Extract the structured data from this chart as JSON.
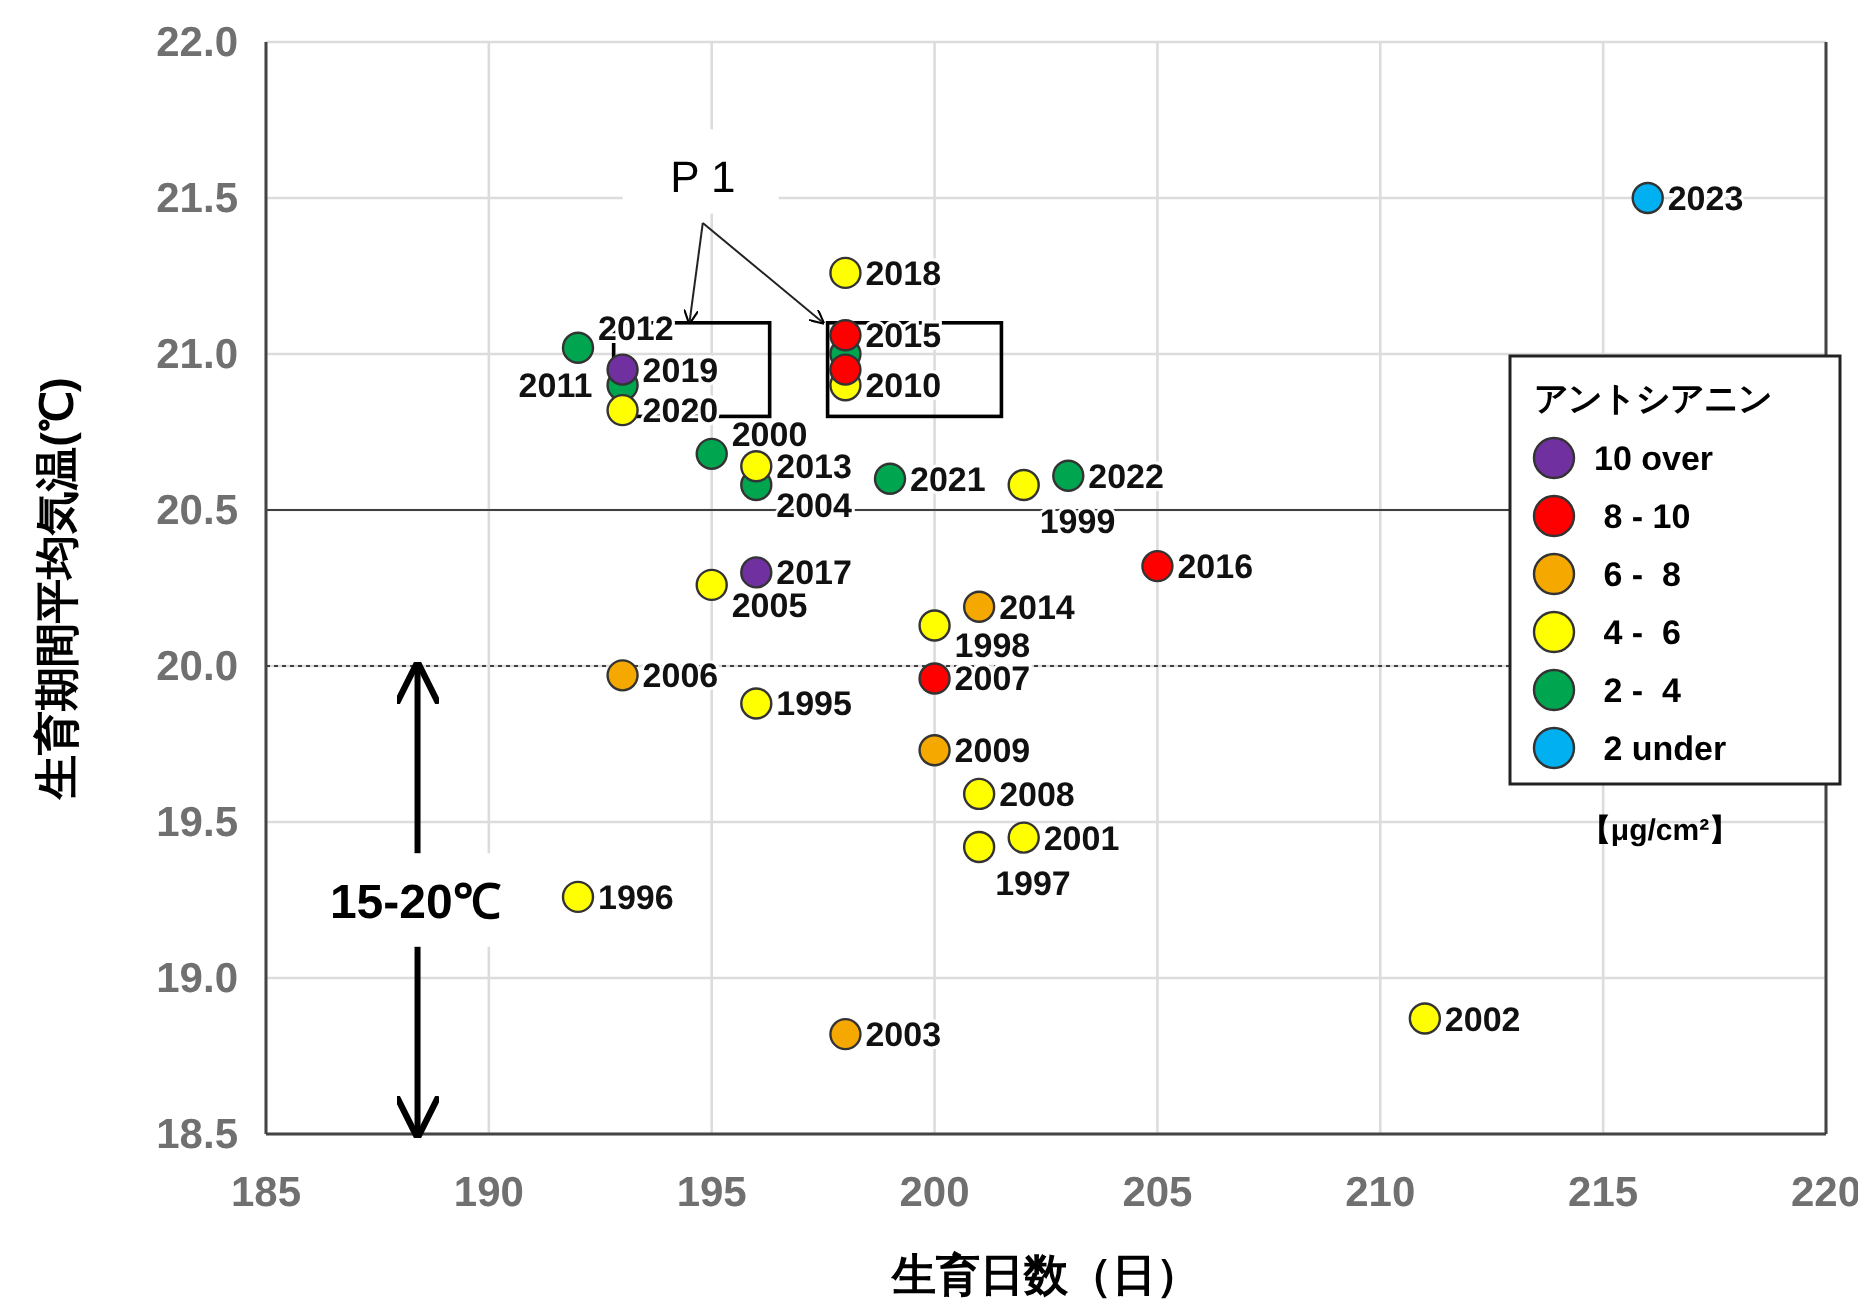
{
  "chart_data": {
    "type": "scatter",
    "xlabel": "生育日数（日）",
    "ylabel": "生育期間平均気温(℃)",
    "legend_title": "アントシアニン",
    "legend": "right",
    "grid": true,
    "marker": "circle",
    "xlim": [
      185,
      220
    ],
    "xticks": [
      185,
      190,
      195,
      200,
      205,
      210,
      215,
      220
    ],
    "ylim": [
      18.5,
      22.0
    ],
    "yticks": [
      {
        "value": 18.5,
        "label": "18.5"
      },
      {
        "value": 19.0,
        "label": "19.0"
      },
      {
        "value": 19.5,
        "label": "19.5"
      },
      {
        "value": 20.0,
        "label": "20.0"
      },
      {
        "value": 20.5,
        "label": "20.5"
      },
      {
        "value": 21.0,
        "label": "21.0"
      },
      {
        "value": 21.5,
        "label": "21.5"
      },
      {
        "value": 22.0,
        "label": "22.0"
      }
    ],
    "ref_lines": [
      {
        "axis": "y",
        "value": 20.5,
        "line_style": "solid",
        "color": "#404040"
      },
      {
        "axis": "y",
        "value": 20.0,
        "line_style": "dotted",
        "color": "#404040"
      }
    ],
    "annotations": [
      "P 1",
      "15-20℃",
      "【μg/cm²】",
      {
        "text": "2019",
        "x": 193,
        "y": 20.95
      },
      {
        "text": "2017",
        "x": 196,
        "y": 20.3
      },
      {
        "text": "2015",
        "x": 198,
        "y": 21.06
      },
      {
        "text": "2007",
        "x": 200,
        "y": 19.96
      },
      {
        "text": "2016",
        "x": 205,
        "y": 20.32
      },
      {
        "text": "2006",
        "x": 193,
        "y": 19.97
      },
      {
        "text": "2014",
        "x": 201,
        "y": 20.19
      },
      {
        "text": "2009",
        "x": 200,
        "y": 19.73
      },
      {
        "text": "2003",
        "x": 198,
        "y": 18.82
      },
      {
        "text": "2020",
        "x": 193,
        "y": 20.82
      },
      {
        "text": "2010",
        "x": 198,
        "y": 20.9
      },
      {
        "text": "2018",
        "x": 198,
        "y": 21.26
      },
      {
        "text": "2013",
        "x": 196,
        "y": 20.64
      },
      {
        "text": "1999",
        "x": 202,
        "y": 20.58
      },
      {
        "text": "2005",
        "x": 195,
        "y": 20.26
      },
      {
        "text": "1998",
        "x": 200,
        "y": 20.13
      },
      {
        "text": "1995",
        "x": 196,
        "y": 19.88
      },
      {
        "text": "2008",
        "x": 201,
        "y": 19.59
      },
      {
        "text": "2001",
        "x": 202,
        "y": 19.45
      },
      {
        "text": "1997",
        "x": 201,
        "y": 19.42
      },
      {
        "text": "1996",
        "x": 192,
        "y": 19.26
      },
      {
        "text": "2002",
        "x": 211,
        "y": 18.87
      },
      {
        "text": "2012",
        "x": 192,
        "y": 21.02
      },
      {
        "text": "2011",
        "x": 193,
        "y": 20.9
      },
      {
        "text": "2000",
        "x": 195,
        "y": 20.68
      },
      {
        "text": "2004",
        "x": 196,
        "y": 20.58
      },
      {
        "text": "2021",
        "x": 199,
        "y": 20.6
      },
      {
        "text": "2022",
        "x": 203,
        "y": 20.61
      },
      {
        "text": "2023",
        "x": 216,
        "y": 21.5
      }
    ],
    "series": [
      {
        "name": "10 over",
        "color": "#7030a0",
        "x": [
          193,
          196
        ],
        "values": [
          20.95,
          20.3
        ]
      },
      {
        "name": " 8 - 10",
        "color": "#ff0000",
        "x": [
          198,
          198,
          200,
          205
        ],
        "values": [
          21.06,
          20.95,
          19.96,
          20.32
        ]
      },
      {
        "name": " 6 -  8",
        "color": "#f5a800",
        "x": [
          193,
          201,
          200,
          198
        ],
        "values": [
          19.97,
          20.19,
          19.73,
          18.82
        ]
      },
      {
        "name": " 4 -  6",
        "color": "#ffff00",
        "x": [
          193,
          198,
          198,
          196,
          202,
          195,
          200,
          196,
          201,
          202,
          201,
          192,
          211
        ],
        "values": [
          20.82,
          20.9,
          21.26,
          20.64,
          20.58,
          20.26,
          20.13,
          19.88,
          19.59,
          19.45,
          19.42,
          19.26,
          18.87
        ]
      },
      {
        "name": " 2 -  4",
        "color": "#00a550",
        "x": [
          192,
          193,
          198,
          195,
          196,
          199,
          203
        ],
        "values": [
          21.02,
          20.9,
          21.0,
          20.68,
          20.58,
          20.6,
          20.61
        ]
      },
      {
        "name": " 2 under",
        "color": "#00b0f0",
        "x": [
          216
        ],
        "values": [
          21.5
        ]
      }
    ]
  }
}
